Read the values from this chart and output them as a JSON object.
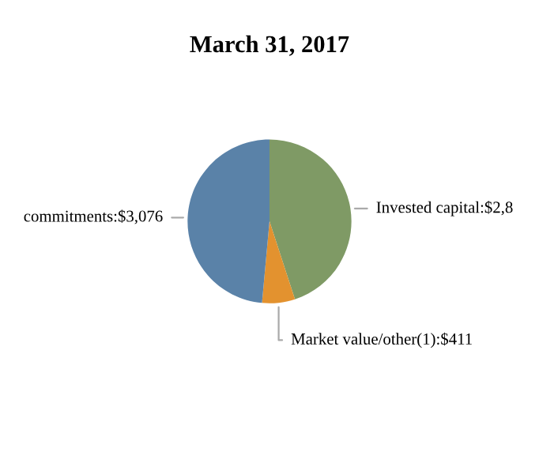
{
  "chart_data": {
    "type": "pie",
    "title": "March 31, 2017",
    "categories": [
      "Invested capital:$2,8",
      "Market value/other(1)",
      "commitments"
    ],
    "values": [
      2850,
      411,
      3076
    ],
    "value_labels": [
      null,
      "$411",
      "$3,076"
    ],
    "colors": [
      "#7f9a65",
      "#e3922f",
      "#5a82a8"
    ]
  }
}
